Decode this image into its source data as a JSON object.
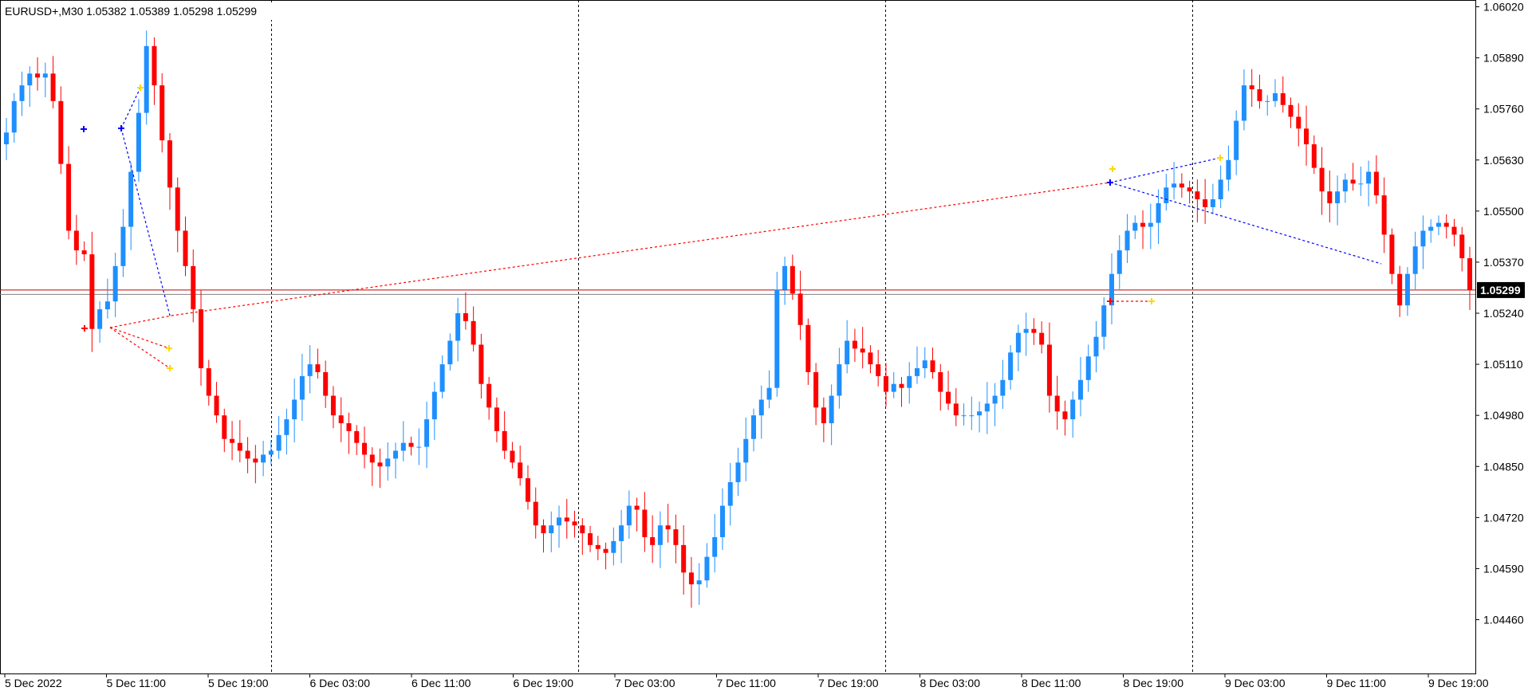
{
  "header": {
    "symbol": "EURUSD+,M30",
    "ohlc": "1.05382 1.05389 1.05298 1.05299"
  },
  "colors": {
    "bull": "#1e8fff",
    "bear": "#ff0000",
    "grid_separator": "#000000",
    "bid_line": "#c00000",
    "ask_line": "#808080",
    "current_bg": "#000000"
  },
  "chart_data": {
    "type": "candlestick",
    "title": "",
    "xlabel": "",
    "ylabel": "",
    "ylim": [
      1.044,
      1.0605
    ],
    "y_ticks": [
      "1.06020",
      "1.05890",
      "1.05760",
      "1.05630",
      "1.05500",
      "1.05370",
      "1.05240",
      "1.05110",
      "1.04980",
      "1.04850",
      "1.04720",
      "1.04590",
      "1.04460"
    ],
    "x_ticks": [
      "5 Dec 2022",
      "5 Dec 11:00",
      "5 Dec 19:00",
      "6 Dec 03:00",
      "6 Dec 11:00",
      "6 Dec 19:00",
      "7 Dec 03:00",
      "7 Dec 11:00",
      "7 Dec 19:00",
      "8 Dec 03:00",
      "8 Dec 11:00",
      "8 Dec 19:00",
      "9 Dec 03:00",
      "9 Dec 11:00",
      "9 Dec 19:00"
    ],
    "current_price": "1.05299",
    "current_value": 1.05299,
    "ask_value": 1.05288,
    "day_separators": [
      "5 Dec 20:00",
      "6 Dec 20:00",
      "7 Dec 20:00",
      "8 Dec 20:00"
    ],
    "close_path": [
      1.057,
      1.0578,
      1.0582,
      1.0585,
      1.0584,
      1.0585,
      1.0578,
      1.0562,
      1.0545,
      1.054,
      1.0539,
      1.052,
      1.0525,
      1.0527,
      1.0536,
      1.0546,
      1.056,
      1.0575,
      1.0592,
      1.0582,
      1.0568,
      1.0556,
      1.0545,
      1.0536,
      1.0525,
      1.051,
      1.0503,
      1.0498,
      1.0492,
      1.0491,
      1.0489,
      1.0487,
      1.0486,
      1.0488,
      1.0489,
      1.0493,
      1.0497,
      1.0502,
      1.0508,
      1.0511,
      1.0509,
      1.0503,
      1.0498,
      1.0496,
      1.0494,
      1.0491,
      1.0488,
      1.0486,
      1.0485,
      1.0487,
      1.0489,
      1.0491,
      1.049,
      1.049,
      1.0497,
      1.0504,
      1.0511,
      1.0517,
      1.0524,
      1.0522,
      1.0516,
      1.0506,
      1.05,
      1.0494,
      1.0489,
      1.0486,
      1.0482,
      1.0476,
      1.047,
      1.0468,
      1.047,
      1.0472,
      1.0471,
      1.047,
      1.0468,
      1.0465,
      1.0464,
      1.0463,
      1.0466,
      1.047,
      1.0475,
      1.0474,
      1.0467,
      1.0465,
      1.047,
      1.0469,
      1.0465,
      1.0458,
      1.0455,
      1.0456,
      1.0462,
      1.0467,
      1.0475,
      1.0481,
      1.0486,
      1.0492,
      1.0498,
      1.0502,
      1.0505,
      1.053,
      1.0536,
      1.0529,
      1.0521,
      1.0509,
      1.05,
      1.0496,
      1.0503,
      1.0511,
      1.0517,
      1.0515,
      1.0514,
      1.0511,
      1.0508,
      1.0504,
      1.0506,
      1.0505,
      1.0508,
      1.051,
      1.0512,
      1.0509,
      1.0504,
      1.0501,
      1.0498,
      1.0498,
      1.0498,
      1.0499,
      1.0501,
      1.0503,
      1.0507,
      1.0514,
      1.0519,
      1.052,
      1.0519,
      1.0516,
      1.0503,
      1.0499,
      1.0497,
      1.0502,
      1.0507,
      1.0513,
      1.0518,
      1.0526,
      1.0534,
      1.054,
      1.0545,
      1.0547,
      1.0546,
      1.0547,
      1.0552,
      1.0556,
      1.0557,
      1.0556,
      1.0555,
      1.0553,
      1.0551,
      1.0553,
      1.0558,
      1.0563,
      1.0573,
      1.0582,
      1.0581,
      1.0578,
      1.0578,
      1.058,
      1.0577,
      1.0574,
      1.0571,
      1.0567,
      1.0561,
      1.0555,
      1.0552,
      1.0555,
      1.0558,
      1.0557,
      1.0557,
      1.056,
      1.0554,
      1.0544,
      1.0534,
      1.0526,
      1.0534,
      1.0541,
      1.0545,
      1.0546,
      1.0547,
      1.0546,
      1.0544,
      1.0538,
      1.053
    ]
  },
  "legend": []
}
